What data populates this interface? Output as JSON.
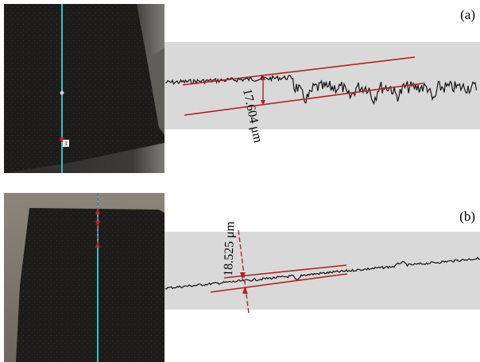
{
  "panels": [
    {
      "label": "(a)",
      "measurement": "17.604 μm",
      "marker": "1"
    },
    {
      "label": "(b)",
      "measurement": "18.525 μm"
    }
  ]
}
